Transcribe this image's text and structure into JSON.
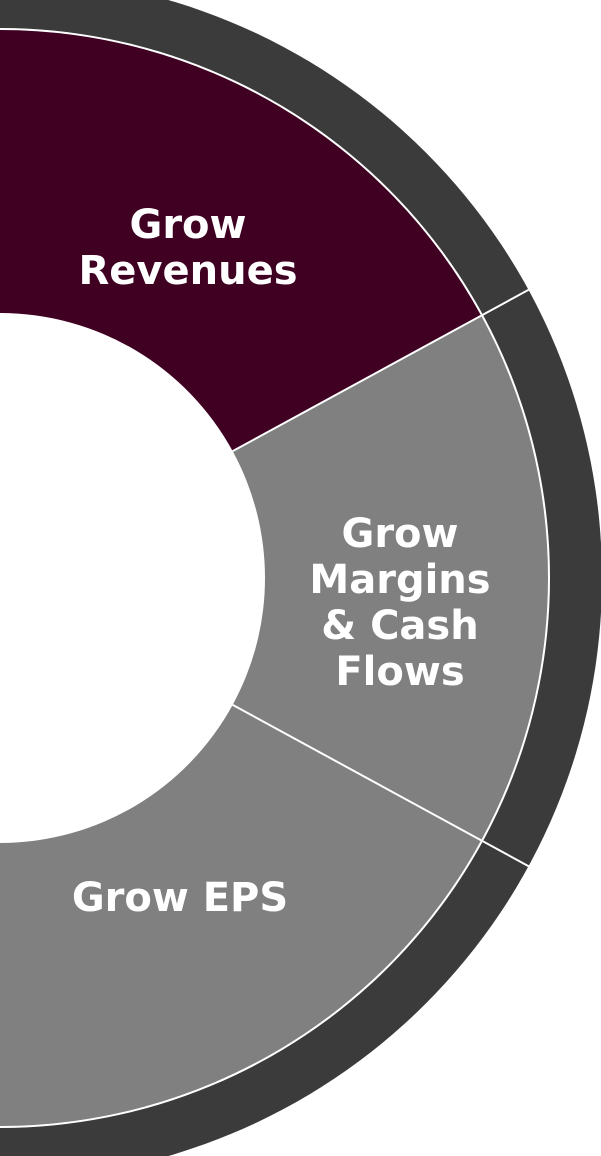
{
  "segments": [
    {
      "lines": [
        "Grow",
        "Revenues"
      ]
    },
    {
      "lines": [
        "Grow",
        "Margins",
        "& Cash",
        "Flows"
      ]
    },
    {
      "lines": [
        "Grow EPS"
      ]
    }
  ]
}
